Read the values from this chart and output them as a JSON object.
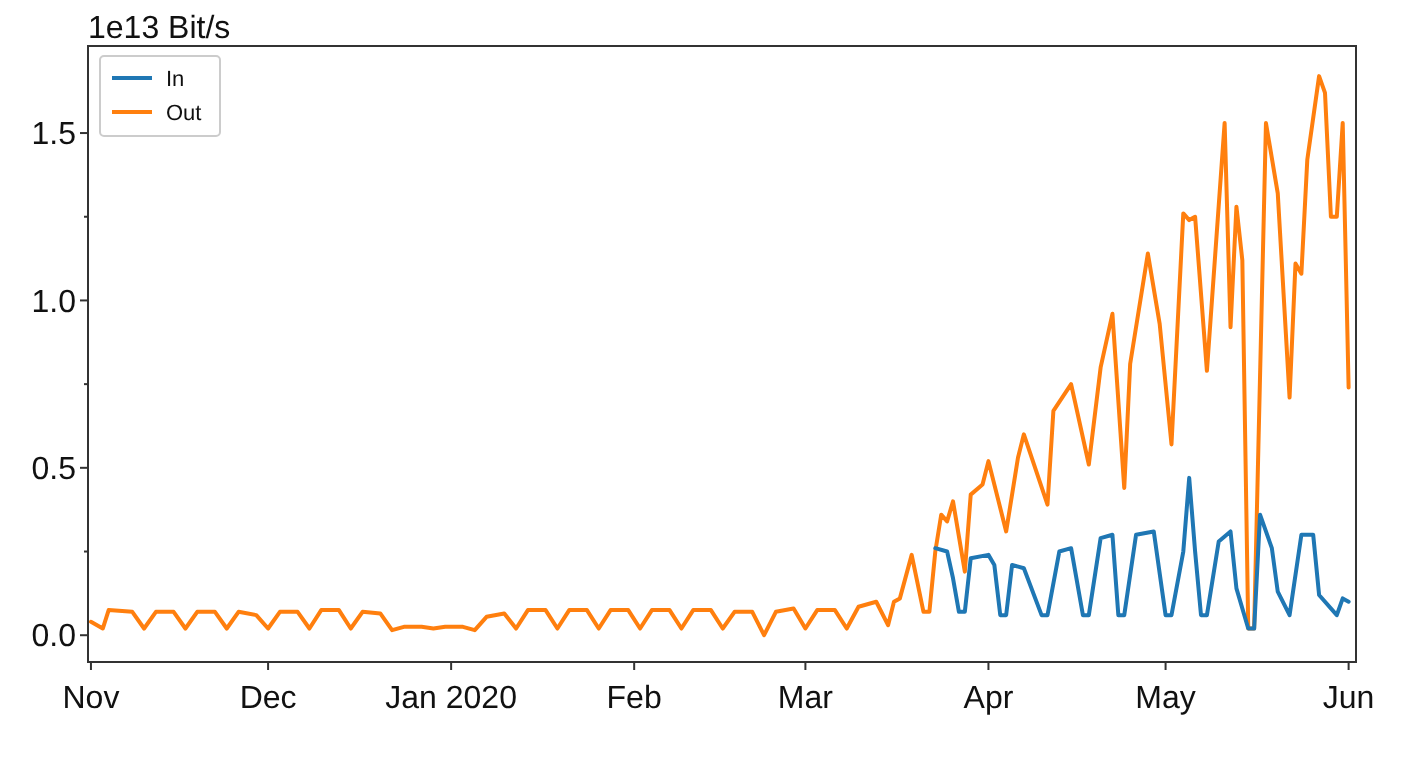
{
  "chart_data": {
    "type": "line",
    "ylabel": "1e13 Bit/s",
    "xlim": [
      "2019-10-31T12:00",
      "2020-06-02T06:00"
    ],
    "ylim": [
      -0.08,
      1.76
    ],
    "xticks": [
      {
        "value": "2019-11-01",
        "label": "Nov"
      },
      {
        "value": "2019-12-01",
        "label": "Dec"
      },
      {
        "value": "2020-01-01",
        "label": "Jan 2020"
      },
      {
        "value": "2020-02-01",
        "label": "Feb"
      },
      {
        "value": "2020-03-01",
        "label": "Mar"
      },
      {
        "value": "2020-04-01",
        "label": "Apr"
      },
      {
        "value": "2020-05-01",
        "label": "May"
      },
      {
        "value": "2020-06-01",
        "label": "Jun"
      }
    ],
    "yticks": [
      {
        "value": 0,
        "label": "0.0"
      },
      {
        "value": 0.25,
        "label": null
      },
      {
        "value": 0.5,
        "label": "0.5"
      },
      {
        "value": 0.75,
        "label": null
      },
      {
        "value": 1,
        "label": "1.0"
      },
      {
        "value": 1.25,
        "label": null
      },
      {
        "value": 1.5,
        "label": "1.5"
      }
    ],
    "legend": "top left",
    "grid": false,
    "line_style": "solid",
    "marker": "none",
    "series": [
      {
        "name": "In",
        "color": "#1f77b4",
        "x": [
          "2020-03-23",
          "2020-03-25",
          "2020-03-26",
          "2020-03-27",
          "2020-03-28",
          "2020-03-29",
          "2020-04-01",
          "2020-04-02",
          "2020-04-03",
          "2020-04-04",
          "2020-04-05",
          "2020-04-07",
          "2020-04-10",
          "2020-04-11",
          "2020-04-13",
          "2020-04-15",
          "2020-04-17",
          "2020-04-18",
          "2020-04-20",
          "2020-04-22",
          "2020-04-23",
          "2020-04-24",
          "2020-04-26",
          "2020-04-29",
          "2020-05-01",
          "2020-05-02",
          "2020-05-04",
          "2020-05-05",
          "2020-05-06",
          "2020-05-07",
          "2020-05-08",
          "2020-05-10",
          "2020-05-12",
          "2020-05-13",
          "2020-05-15",
          "2020-05-16",
          "2020-05-17",
          "2020-05-19",
          "2020-05-20",
          "2020-05-22",
          "2020-05-24",
          "2020-05-26",
          "2020-05-27",
          "2020-05-30",
          "2020-05-31",
          "2020-06-01"
        ],
        "values": [
          0.26,
          0.25,
          0.17,
          0.07,
          0.07,
          0.23,
          0.24,
          0.21,
          0.06,
          0.06,
          0.21,
          0.2,
          0.06,
          0.06,
          0.25,
          0.26,
          0.06,
          0.06,
          0.29,
          0.3,
          0.06,
          0.06,
          0.3,
          0.31,
          0.06,
          0.06,
          0.25,
          0.47,
          0.25,
          0.06,
          0.06,
          0.28,
          0.31,
          0.14,
          0.02,
          0.02,
          0.36,
          0.26,
          0.13,
          0.06,
          0.3,
          0.3,
          0.12,
          0.06,
          0.11,
          0.1
        ]
      },
      {
        "name": "Out",
        "color": "#ff7f0e",
        "x": [
          "2019-11-01",
          "2019-11-03",
          "2019-11-04",
          "2019-11-08",
          "2019-11-10",
          "2019-11-12",
          "2019-11-15",
          "2019-11-17",
          "2019-11-19",
          "2019-11-22",
          "2019-11-24",
          "2019-11-26",
          "2019-11-29",
          "2019-12-01",
          "2019-12-03",
          "2019-12-06",
          "2019-12-08",
          "2019-12-10",
          "2019-12-13",
          "2019-12-15",
          "2019-12-17",
          "2019-12-20",
          "2019-12-22",
          "2019-12-24",
          "2019-12-27",
          "2019-12-29",
          "2019-12-31",
          "2020-01-03",
          "2020-01-05",
          "2020-01-07",
          "2020-01-10",
          "2020-01-12",
          "2020-01-14",
          "2020-01-17",
          "2020-01-19",
          "2020-01-21",
          "2020-01-24",
          "2020-01-26",
          "2020-01-28",
          "2020-01-31",
          "2020-02-02",
          "2020-02-04",
          "2020-02-07",
          "2020-02-09",
          "2020-02-11",
          "2020-02-14",
          "2020-02-16",
          "2020-02-18",
          "2020-02-21",
          "2020-02-23",
          "2020-02-25",
          "2020-02-28",
          "2020-03-01",
          "2020-03-03",
          "2020-03-06",
          "2020-03-08",
          "2020-03-10",
          "2020-03-13",
          "2020-03-15",
          "2020-03-16",
          "2020-03-17",
          "2020-03-19",
          "2020-03-21",
          "2020-03-22",
          "2020-03-23",
          "2020-03-24",
          "2020-03-25",
          "2020-03-26",
          "2020-03-28",
          "2020-03-29",
          "2020-03-31",
          "2020-04-01",
          "2020-04-04",
          "2020-04-06",
          "2020-04-07",
          "2020-04-11",
          "2020-04-12",
          "2020-04-15",
          "2020-04-18",
          "2020-04-20",
          "2020-04-22",
          "2020-04-24",
          "2020-04-25",
          "2020-04-28",
          "2020-04-30",
          "2020-05-02",
          "2020-05-04",
          "2020-05-05",
          "2020-05-06",
          "2020-05-08",
          "2020-05-11",
          "2020-05-12",
          "2020-05-13",
          "2020-05-14",
          "2020-05-15",
          "2020-05-16",
          "2020-05-18",
          "2020-05-20",
          "2020-05-22",
          "2020-05-23",
          "2020-05-24",
          "2020-05-25",
          "2020-05-27",
          "2020-05-28",
          "2020-05-29",
          "2020-05-30",
          "2020-05-31",
          "2020-06-01"
        ],
        "values": [
          0.04,
          0.02,
          0.075,
          0.07,
          0.02,
          0.07,
          0.07,
          0.02,
          0.07,
          0.07,
          0.02,
          0.07,
          0.06,
          0.02,
          0.07,
          0.07,
          0.02,
          0.075,
          0.075,
          0.02,
          0.07,
          0.065,
          0.015,
          0.025,
          0.025,
          0.02,
          0.025,
          0.025,
          0.015,
          0.055,
          0.065,
          0.02,
          0.075,
          0.075,
          0.02,
          0.075,
          0.075,
          0.02,
          0.075,
          0.075,
          0.02,
          0.075,
          0.075,
          0.02,
          0.075,
          0.075,
          0.02,
          0.07,
          0.07,
          0.0,
          0.07,
          0.08,
          0.02,
          0.075,
          0.075,
          0.02,
          0.085,
          0.1,
          0.03,
          0.1,
          0.11,
          0.24,
          0.07,
          0.07,
          0.25,
          0.36,
          0.34,
          0.4,
          0.19,
          0.42,
          0.45,
          0.52,
          0.31,
          0.53,
          0.6,
          0.39,
          0.67,
          0.75,
          0.51,
          0.8,
          0.96,
          0.44,
          0.81,
          1.14,
          0.93,
          0.57,
          1.26,
          1.24,
          1.25,
          0.79,
          1.53,
          0.92,
          1.28,
          1.12,
          0.02,
          0.02,
          1.53,
          1.32,
          0.71,
          1.11,
          1.08,
          1.42,
          1.67,
          1.62,
          1.25,
          1.25,
          1.53,
          0.74
        ]
      }
    ]
  }
}
